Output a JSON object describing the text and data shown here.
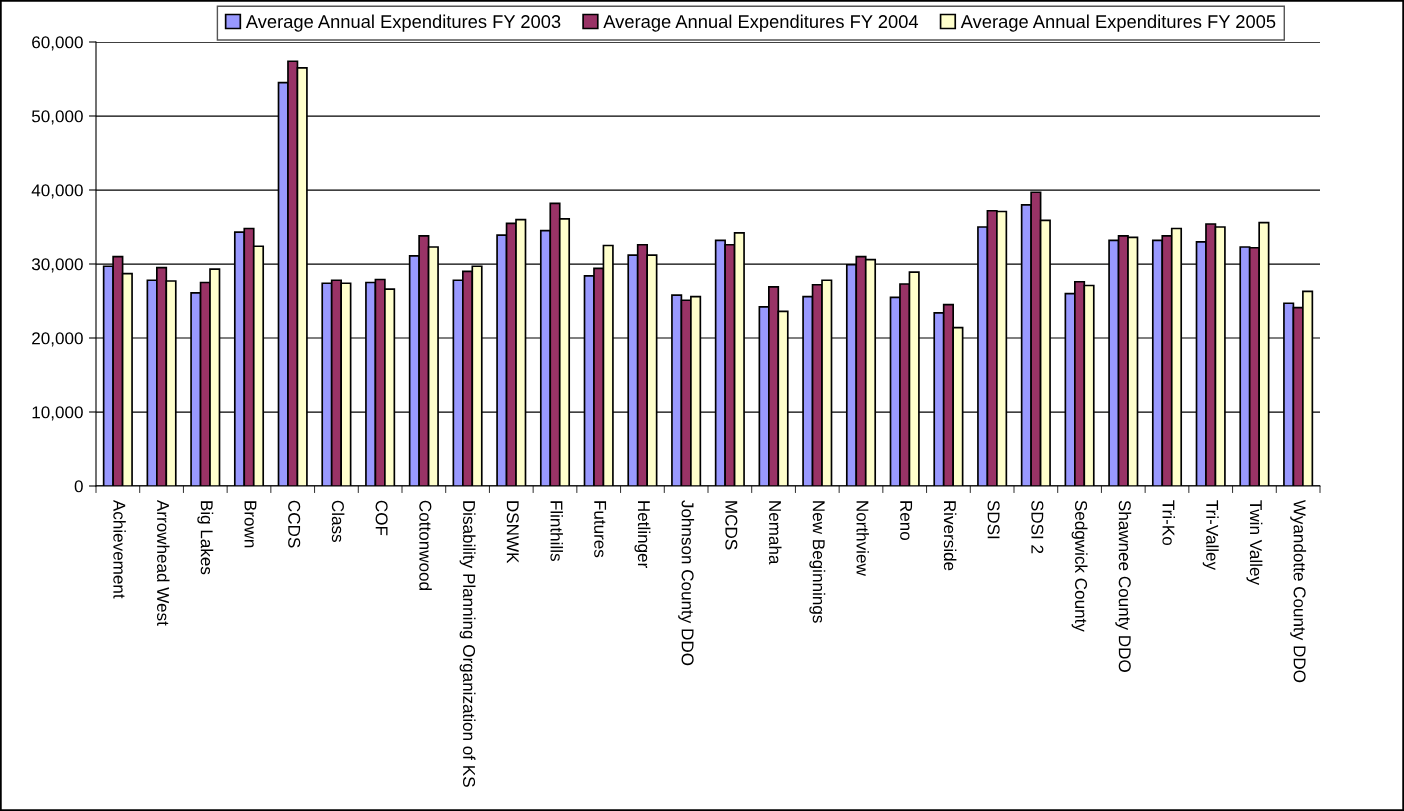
{
  "chart_data": {
    "type": "bar",
    "categories": [
      "Achievement",
      "Arrowhead West",
      "Big Lakes",
      "Brown",
      "CCDS",
      "Class",
      "COF",
      "Cottonwood",
      "Disability Planning Organization of KS",
      "DSNWK",
      "Flinthills",
      "Futures",
      "Hetlinger",
      "Johnson County DDO",
      "MCDS",
      "Nemaha",
      "New Beginnings",
      "Northview",
      "Reno",
      "Riverside",
      "SDSI",
      "SDSI 2",
      "Sedgwick County",
      "Shawnee County DDO",
      "Tri-Ko",
      "Tri-Valley",
      "Twin Valley",
      "Wyandotte County DDO"
    ],
    "series": [
      {
        "name": "Average Annual Expenditures FY 2003",
        "color": "#9999ff",
        "values": [
          29700,
          27800,
          26100,
          34300,
          54500,
          27400,
          27500,
          31100,
          27800,
          33900,
          34500,
          28400,
          31200,
          25800,
          33200,
          24200,
          25600,
          29900,
          25500,
          23400,
          35000,
          38000,
          26000,
          33200,
          33200,
          33000,
          32300,
          24700
        ]
      },
      {
        "name": "Average Annual Expenditures FY 2004",
        "color": "#993366",
        "values": [
          31000,
          29500,
          27500,
          34800,
          57400,
          27800,
          27900,
          33800,
          29000,
          35500,
          38200,
          29400,
          32600,
          25100,
          32600,
          26900,
          27200,
          31000,
          27300,
          24500,
          37200,
          39700,
          27600,
          33800,
          33800,
          35400,
          32200,
          24100
        ]
      },
      {
        "name": "Average Annual Expenditures FY 2005",
        "color": "#ffffcc",
        "values": [
          28700,
          27700,
          29300,
          32400,
          56500,
          27400,
          26600,
          32300,
          29700,
          36000,
          36100,
          32500,
          31200,
          25600,
          34200,
          23600,
          27800,
          30600,
          28900,
          21400,
          37100,
          35900,
          27100,
          33600,
          34800,
          35000,
          35600,
          26300
        ]
      }
    ],
    "ylim": [
      0,
      60000
    ],
    "yticks": [
      0,
      {
        "value": 10000,
        "label": "10,000"
      },
      {
        "value": 20000,
        "label": "20,000"
      },
      {
        "value": 30000,
        "label": "30,000"
      },
      {
        "value": 40000,
        "label": "40,000"
      },
      {
        "value": 50000,
        "label": "50,000"
      },
      {
        "value": 60000,
        "label": "60,000"
      }
    ],
    "grid": "y",
    "legend": "top"
  }
}
